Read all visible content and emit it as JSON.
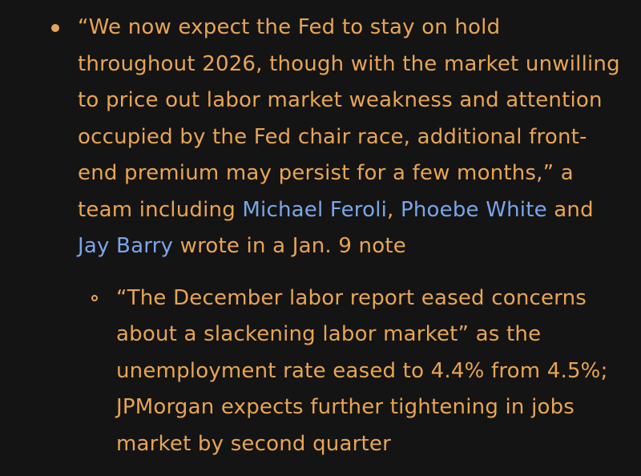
{
  "colors": {
    "background": "#141414",
    "text": "#e8a553",
    "link": "#7aa6e8"
  },
  "bullet": {
    "text_1": "“We now expect the Fed to stay on hold throughout 2026, though with the market unwilling to price out labor market weakness and attention occupied by the Fed chair race, additional front-end premium may persist for a few months,” a team including ",
    "link_1": "Michael Feroli",
    "text_2": ", ",
    "link_2": "Phoebe White",
    "text_3": " and ",
    "link_3": "Jay Barry",
    "text_4": " wrote in a Jan. 9 note",
    "sub_bullet": {
      "text": "“The December labor report eased concerns about a slackening labor market” as the unemployment rate eased to 4.4% from 4.5%; JPMorgan expects further tightening in jobs market by second quarter"
    }
  }
}
